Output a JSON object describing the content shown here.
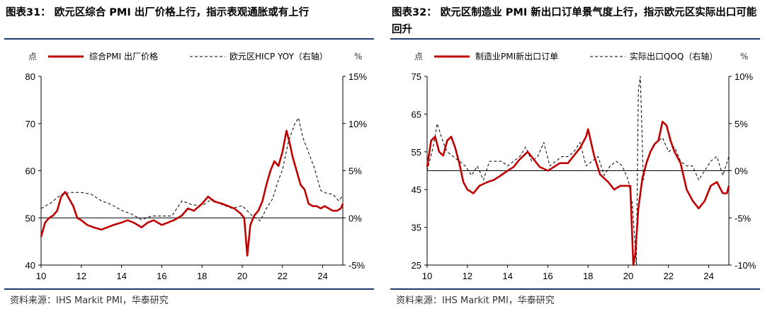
{
  "charts": [
    {
      "title": "图表31： 欧元区综合 PMI 出厂价格上行，指示表观通胀或有上行",
      "source": "资料来源：IHS Markit PMI，华泰研究",
      "left_unit": "点",
      "right_unit": "%",
      "legend": [
        "综合PMI 出厂价格",
        "欧元区HICP YOY（右轴）"
      ],
      "colors": {
        "primary": "#c00000",
        "secondary": "#000000"
      }
    },
    {
      "title": "图表32： 欧元区制造业 PMI 新出口订单景气度上行，指示欧元区实际出口可能回升",
      "source": "资料来源：IHS Markit PMI，华泰研究",
      "left_unit": "点",
      "right_unit": "%",
      "legend": [
        "制造业PMI新出口订单",
        "实际出口QOQ（右轴）"
      ],
      "colors": {
        "primary": "#c00000",
        "secondary": "#000000"
      }
    }
  ],
  "chart_data": [
    {
      "type": "line",
      "x_ticks": [
        "10",
        "12",
        "14",
        "16",
        "18",
        "20",
        "22",
        "24"
      ],
      "x_range": [
        2010,
        2025
      ],
      "y_left": {
        "ticks": [
          40,
          50,
          60,
          70,
          80
        ],
        "range": [
          40,
          80
        ]
      },
      "y_right": {
        "ticks": [
          "-5%",
          "0%",
          "5%",
          "10%",
          "15%"
        ],
        "values": [
          -5,
          0,
          5,
          10,
          15
        ],
        "range": [
          -5,
          15
        ]
      },
      "baseline_right": 0,
      "series": [
        {
          "name": "综合PMI 出厂价格",
          "axis": "left",
          "style": "solid",
          "x": [
            2010.0,
            2010.2,
            2010.4,
            2010.6,
            2010.8,
            2011.0,
            2011.2,
            2011.4,
            2011.6,
            2011.8,
            2012.0,
            2012.3,
            2012.6,
            2013.0,
            2013.3,
            2013.6,
            2014.0,
            2014.3,
            2014.6,
            2015.0,
            2015.3,
            2015.6,
            2016.0,
            2016.3,
            2016.6,
            2017.0,
            2017.3,
            2017.6,
            2018.0,
            2018.3,
            2018.6,
            2019.0,
            2019.3,
            2019.6,
            2019.9,
            2020.1,
            2020.25,
            2020.4,
            2020.6,
            2020.8,
            2021.0,
            2021.2,
            2021.4,
            2021.6,
            2021.8,
            2022.0,
            2022.2,
            2022.35,
            2022.5,
            2022.7,
            2022.9,
            2023.1,
            2023.3,
            2023.5,
            2023.7,
            2023.9,
            2024.1,
            2024.3,
            2024.5,
            2024.7,
            2024.9,
            2025.0
          ],
          "y": [
            46,
            49,
            50,
            50.5,
            51.5,
            54.5,
            55.5,
            54,
            52.5,
            50,
            49.5,
            48.5,
            48,
            47.5,
            48,
            48.5,
            49,
            49.5,
            49,
            48,
            49,
            49.5,
            48.5,
            49,
            49.5,
            50.5,
            52,
            51.5,
            53,
            54.5,
            53.5,
            53,
            52.5,
            52,
            51,
            50,
            42,
            48.5,
            50.5,
            51.5,
            53.5,
            57,
            60,
            62,
            61,
            64,
            68.5,
            66,
            63,
            60,
            57,
            56,
            53,
            52.5,
            52.5,
            52,
            52.5,
            52,
            51.5,
            51.5,
            52,
            53
          ]
        },
        {
          "name": "欧元区HICP YOY（右轴）",
          "axis": "right",
          "style": "dashed",
          "x": [
            2010.0,
            2010.5,
            2011.0,
            2011.5,
            2012.0,
            2012.5,
            2013.0,
            2013.5,
            2014.0,
            2014.5,
            2015.0,
            2015.5,
            2016.0,
            2016.5,
            2017.0,
            2017.5,
            2018.0,
            2018.5,
            2019.0,
            2019.5,
            2020.0,
            2020.5,
            2020.9,
            2021.2,
            2021.5,
            2021.8,
            2022.0,
            2022.3,
            2022.6,
            2022.8,
            2023.0,
            2023.3,
            2023.6,
            2023.9,
            2024.2,
            2024.5,
            2024.8,
            2025.0
          ],
          "y": [
            1.0,
            1.6,
            2.5,
            2.7,
            2.7,
            2.5,
            1.8,
            1.4,
            0.8,
            0.4,
            -0.2,
            0.2,
            0.2,
            0.2,
            1.8,
            1.4,
            1.3,
            2.0,
            1.4,
            1.0,
            1.3,
            0.2,
            -0.3,
            1.0,
            2.0,
            4.0,
            5.1,
            8.1,
            9.9,
            10.6,
            8.6,
            6.9,
            5.2,
            2.9,
            2.6,
            2.5,
            1.8,
            2.4
          ]
        }
      ]
    },
    {
      "type": "line",
      "x_ticks": [
        "10",
        "12",
        "14",
        "16",
        "18",
        "20",
        "22",
        "24"
      ],
      "x_range": [
        2010,
        2025
      ],
      "y_left": {
        "ticks": [
          25,
          35,
          45,
          55,
          65,
          75
        ],
        "range": [
          25,
          75
        ]
      },
      "y_right": {
        "ticks": [
          "-10%",
          "-5%",
          "0%",
          "5%",
          "10%"
        ],
        "values": [
          -10,
          -5,
          0,
          5,
          10
        ],
        "range": [
          -10,
          10
        ]
      },
      "baseline_right": 0,
      "series": [
        {
          "name": "制造业PMI新出口订单",
          "axis": "left",
          "style": "solid",
          "x": [
            2010.0,
            2010.2,
            2010.4,
            2010.6,
            2010.8,
            2011.0,
            2011.2,
            2011.4,
            2011.6,
            2011.8,
            2012.0,
            2012.3,
            2012.6,
            2013.0,
            2013.3,
            2013.6,
            2014.0,
            2014.3,
            2014.6,
            2015.0,
            2015.3,
            2015.6,
            2016.0,
            2016.3,
            2016.6,
            2017.0,
            2017.3,
            2017.6,
            2017.9,
            2018.0,
            2018.3,
            2018.6,
            2019.0,
            2019.3,
            2019.6,
            2019.9,
            2020.1,
            2020.25,
            2020.35,
            2020.5,
            2020.7,
            2020.9,
            2021.1,
            2021.3,
            2021.5,
            2021.7,
            2021.9,
            2022.1,
            2022.3,
            2022.6,
            2022.9,
            2023.2,
            2023.5,
            2023.8,
            2024.1,
            2024.4,
            2024.7,
            2024.9,
            2025.0
          ],
          "y": [
            51,
            58,
            59,
            55,
            54,
            58,
            59,
            56,
            52,
            47,
            45,
            44,
            46,
            47,
            47.5,
            48.5,
            50,
            51,
            53,
            55,
            53,
            51,
            50,
            51,
            52,
            52,
            54,
            56,
            59,
            61,
            54,
            49,
            47,
            45,
            46,
            46,
            46,
            25,
            28,
            40,
            48,
            52,
            55,
            57,
            58,
            63,
            62,
            58,
            55,
            52,
            45,
            42,
            40,
            42,
            46,
            47,
            44,
            44,
            46
          ]
        },
        {
          "name": "实际出口QOQ（右轴）",
          "axis": "right",
          "style": "dashed",
          "x": [
            2010.0,
            2010.3,
            2010.5,
            2010.8,
            2011.0,
            2011.3,
            2011.6,
            2011.9,
            2012.2,
            2012.5,
            2012.8,
            2013.1,
            2013.4,
            2013.7,
            2014.0,
            2014.3,
            2014.6,
            2014.9,
            2015.2,
            2015.5,
            2015.8,
            2016.1,
            2016.4,
            2016.7,
            2017.0,
            2017.3,
            2017.6,
            2017.9,
            2018.2,
            2018.5,
            2018.8,
            2019.1,
            2019.4,
            2019.7,
            2020.0,
            2020.2,
            2020.4,
            2020.5,
            2020.6,
            2020.75,
            2020.9,
            2021.1,
            2021.4,
            2021.7,
            2022.0,
            2022.3,
            2022.6,
            2022.9,
            2023.2,
            2023.5,
            2023.8,
            2024.1,
            2024.4,
            2024.7,
            2025.0
          ],
          "y": [
            0,
            2.5,
            5.0,
            3.0,
            2.0,
            1.5,
            1.0,
            0.5,
            -0.5,
            0.5,
            -1.0,
            1.0,
            1.0,
            1.0,
            0.5,
            1.0,
            1.5,
            2.5,
            1.0,
            1.5,
            3.0,
            0.5,
            1.0,
            1.5,
            1.5,
            2.0,
            3.0,
            0.5,
            1.0,
            1.5,
            -0.5,
            0.5,
            1.0,
            0.5,
            -1.0,
            -3.5,
            -10.0,
            8.5,
            10.0,
            -1.0,
            1.0,
            2.0,
            3.0,
            3.5,
            2.0,
            2.5,
            1.0,
            0.5,
            0.5,
            -1.0,
            0.0,
            1.0,
            1.5,
            -0.5,
            1.5
          ]
        }
      ]
    }
  ]
}
